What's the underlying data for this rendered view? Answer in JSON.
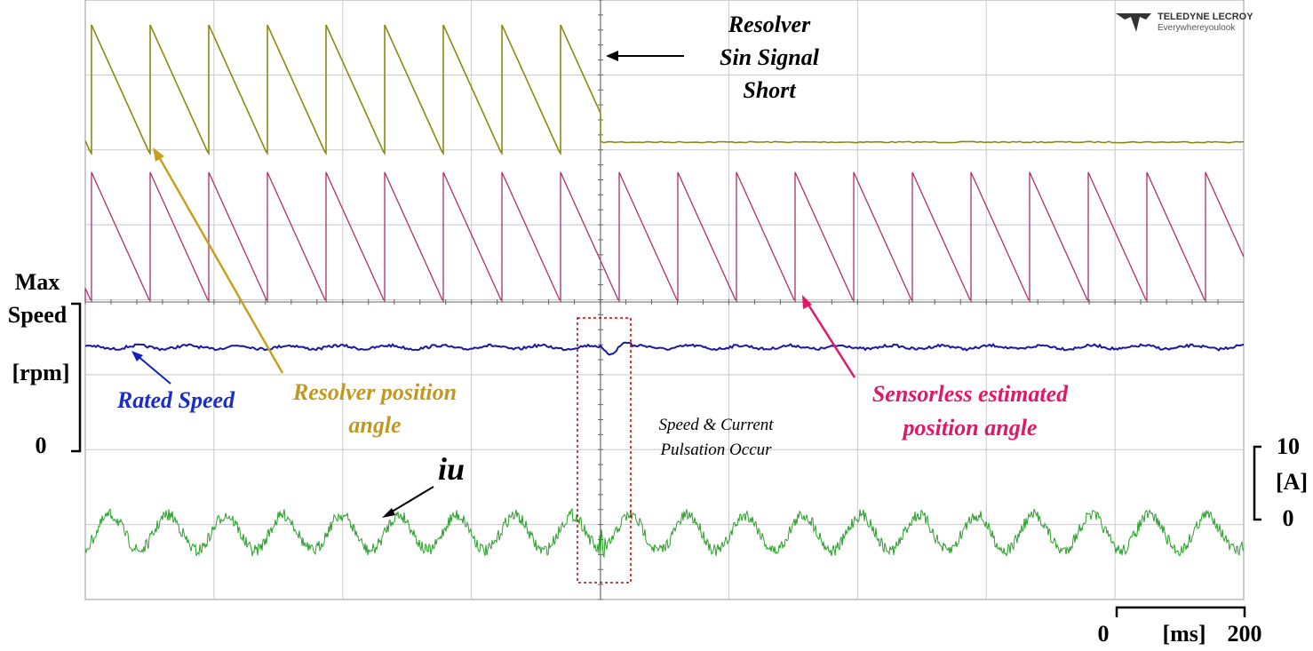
{
  "logo": {
    "brand": "TELEDYNE LECROY",
    "tagline": "Everywhereyoulook"
  },
  "left_axis": {
    "max": "Max",
    "speed": "Speed",
    "unit": "[rpm]",
    "zero": "0"
  },
  "right_axis": {
    "max": "10",
    "unit": "[A]",
    "zero": "0"
  },
  "time_scale": {
    "start": "0",
    "unit": "[ms]",
    "end": "200"
  },
  "annotations": {
    "resolver_short": [
      "Resolver",
      "Sin Signal",
      "Short"
    ],
    "rated_speed": "Rated Speed",
    "resolver_angle": [
      "Resolver position",
      "angle"
    ],
    "sensorless_angle": [
      "Sensorless estimated",
      "position angle"
    ],
    "iu": "iu",
    "pulsation": [
      "Speed & Current",
      "Pulsation Occur"
    ]
  }
}
